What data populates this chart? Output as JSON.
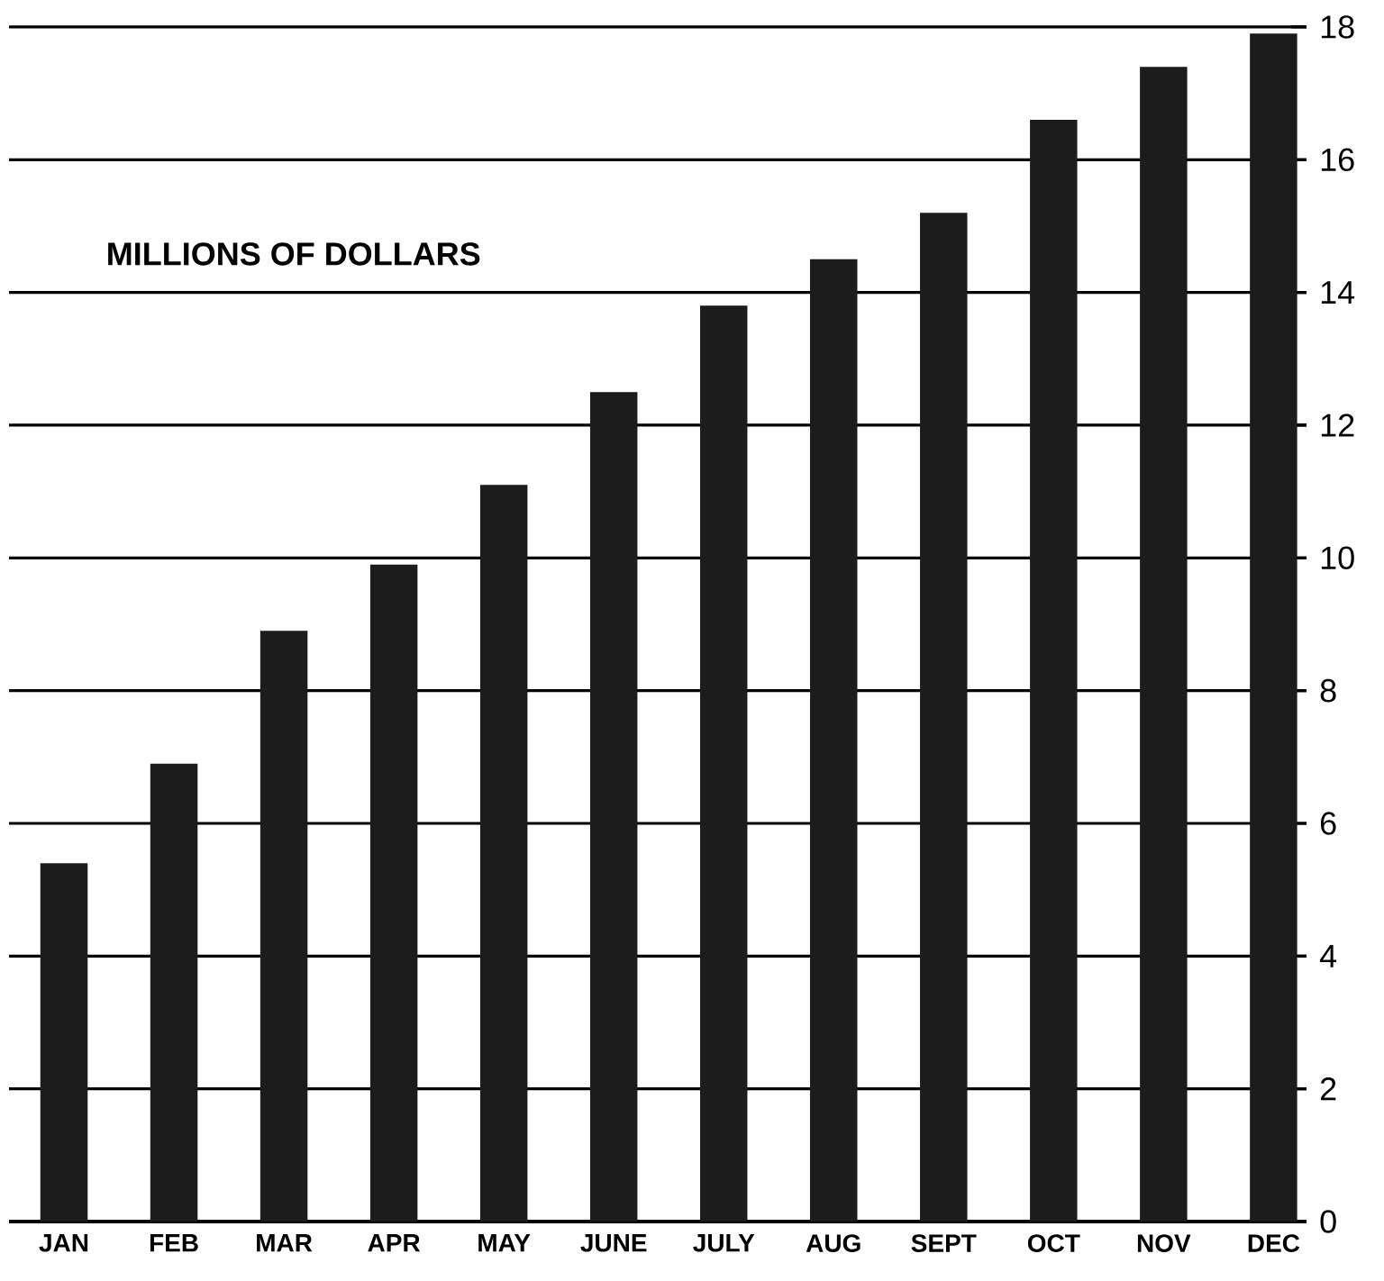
{
  "chart_data": {
    "type": "bar",
    "ylabel": "MILLIONS OF DOLLARS",
    "categories": [
      "JAN",
      "FEB",
      "MAR",
      "APR",
      "MAY",
      "JUNE",
      "JULY",
      "AUG",
      "SEPT",
      "OCT",
      "NOV",
      "DEC"
    ],
    "values": [
      5.4,
      6.9,
      8.9,
      9.9,
      11.1,
      12.5,
      13.8,
      14.5,
      15.2,
      16.6,
      17.4,
      17.9
    ],
    "color": "#1c1c1c",
    "ylim": [
      0,
      18
    ],
    "yticks": [
      0,
      2,
      4,
      6,
      8,
      10,
      12,
      14,
      16,
      18
    ],
    "grid": "y"
  }
}
